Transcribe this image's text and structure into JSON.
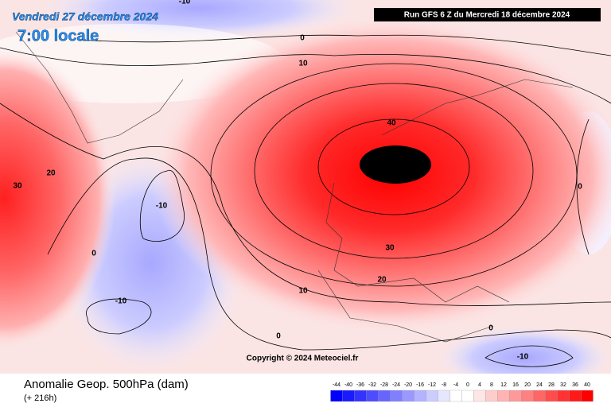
{
  "header": {
    "date": "Vendredi 27 décembre 2024",
    "time": "7:00 locale",
    "run": "Run GFS 6 Z du Mercredi 18 décembre 2024"
  },
  "map": {
    "contour_labels": [
      -10,
      0,
      10,
      40,
      20,
      30,
      -10,
      0,
      30,
      20,
      10,
      -10,
      0,
      0,
      -10,
      0
    ],
    "copyright": "Copyright © 2024 Meteociel.fr"
  },
  "footer": {
    "title": "Anomalie Geop. 500hPa (dam)",
    "lead": "(+ 216h)"
  },
  "legend": {
    "ticks": [
      -44,
      -40,
      -36,
      -32,
      -28,
      -24,
      -20,
      -16,
      -12,
      -8,
      -4,
      0,
      4,
      8,
      12,
      16,
      20,
      24,
      28,
      32,
      36,
      40
    ],
    "colors": [
      "#0000ff",
      "#1a1aff",
      "#3333ff",
      "#4d4dff",
      "#6666ff",
      "#8080ff",
      "#9999ff",
      "#b3b3ff",
      "#ccccff",
      "#e6e6ff",
      "#ffffff",
      "#ffffff",
      "#ffe6e6",
      "#ffcccc",
      "#ffb3b3",
      "#ff9999",
      "#ff8080",
      "#ff6666",
      "#ff4d4d",
      "#ff3333",
      "#ff1a1a",
      "#ff0000"
    ]
  }
}
